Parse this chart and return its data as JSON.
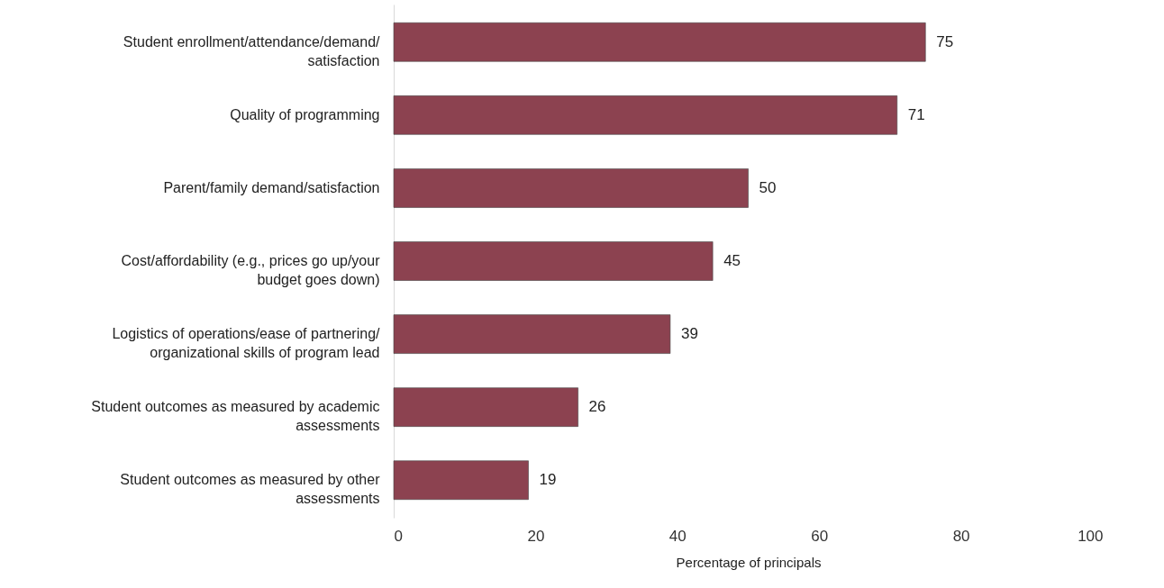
{
  "chart_data": {
    "type": "bar",
    "orientation": "horizontal",
    "categories": [
      "Student enrollment/attendance/demand/satisfaction",
      "Quality of programming",
      "Parent/family demand/satisfaction",
      "Cost/affordability (e.g., prices go up/your budget goes down)",
      "Logistics of operations/ease of partnering/organizational skills of program lead",
      "Student outcomes as measured by academic assessments",
      "Student outcomes as measured by other assessments"
    ],
    "values": [
      75,
      71,
      50,
      45,
      39,
      26,
      19
    ],
    "color": "#8c4250",
    "xlabel": "Percentage of principals",
    "xlim": [
      0,
      100
    ],
    "xticks": [
      0,
      20,
      40,
      60,
      80,
      100
    ],
    "data_labels": true,
    "grid": false
  }
}
